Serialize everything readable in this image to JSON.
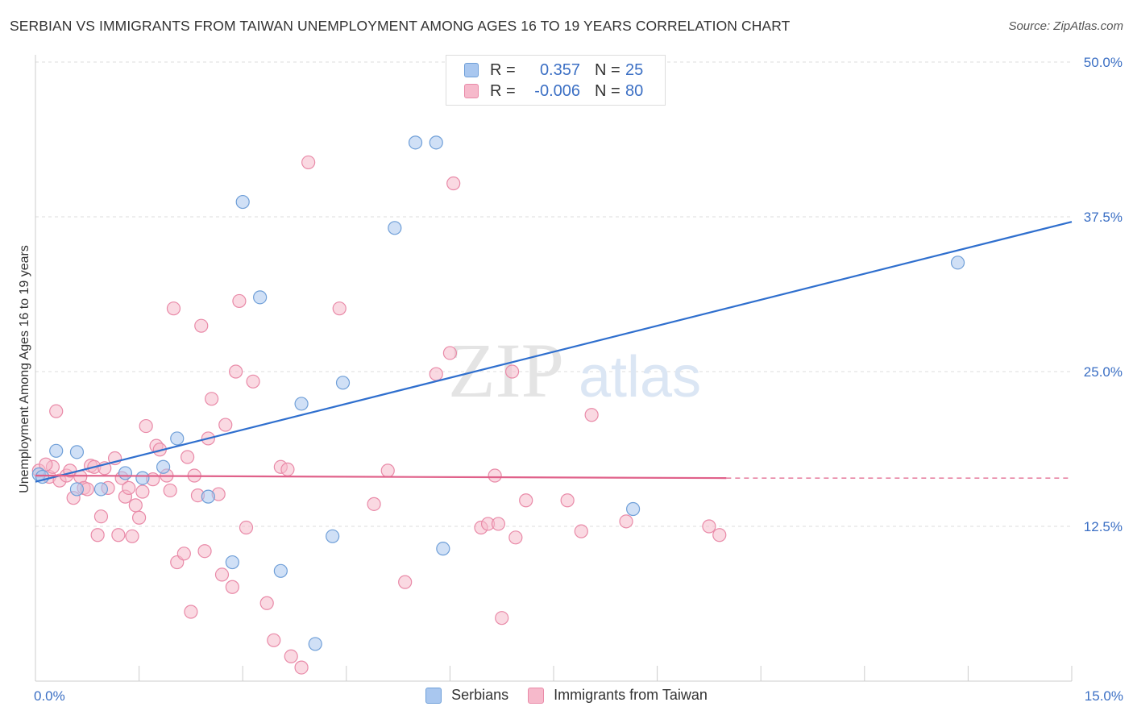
{
  "header": {
    "title": "SERBIAN VS IMMIGRANTS FROM TAIWAN UNEMPLOYMENT AMONG AGES 16 TO 19 YEARS CORRELATION CHART",
    "source": "Source: ZipAtlas.com"
  },
  "legend_top": {
    "rows": [
      {
        "r_label": "R =",
        "r_value": "0.357",
        "n_label": "N =",
        "n_value": "25"
      },
      {
        "r_label": "R =",
        "r_value": "-0.006",
        "n_label": "N =",
        "n_value": "80"
      }
    ]
  },
  "legend_bottom": {
    "serbians": "Serbians",
    "taiwan": "Immigrants from Taiwan"
  },
  "watermark": {
    "zip": "ZIP",
    "atlas": "atlas"
  },
  "colors": {
    "serbians_fill": "#a9c7ef",
    "serbians_stroke": "#6f9fd8",
    "serbians_line": "#2f6fce",
    "taiwan_fill": "#f6b9cb",
    "taiwan_stroke": "#e98aa8",
    "taiwan_line": "#e0618a",
    "tick_label": "#3b6fc4",
    "grid": "#dddddd"
  },
  "chart_data": {
    "type": "scatter",
    "title": "SERBIAN VS IMMIGRANTS FROM TAIWAN UNEMPLOYMENT AMONG AGES 16 TO 19 YEARS CORRELATION CHART",
    "xlabel": "",
    "ylabel": "Unemployment Among Ages 16 to 19 years",
    "xlim": [
      0,
      15
    ],
    "ylim": [
      0,
      50
    ],
    "x_tick_labels": [
      "0.0%",
      "15.0%"
    ],
    "y_ticks": [
      12.5,
      25.0,
      37.5,
      50.0
    ],
    "y_tick_labels": [
      "12.5%",
      "25.0%",
      "37.5%",
      "50.0%"
    ],
    "grid": true,
    "legend_placement": "top-center",
    "series": [
      {
        "name": "Serbians",
        "r": 0.357,
        "n": 25,
        "trend": {
          "x": [
            0,
            15
          ],
          "y": [
            16.1,
            37.1
          ]
        },
        "points": [
          [
            0.05,
            16.7
          ],
          [
            0.1,
            16.5
          ],
          [
            0.3,
            18.6
          ],
          [
            0.6,
            18.5
          ],
          [
            0.6,
            15.5
          ],
          [
            0.95,
            15.5
          ],
          [
            1.3,
            16.8
          ],
          [
            1.55,
            16.4
          ],
          [
            1.85,
            17.3
          ],
          [
            2.05,
            19.6
          ],
          [
            2.5,
            14.9
          ],
          [
            2.85,
            9.6
          ],
          [
            3.0,
            38.7
          ],
          [
            3.25,
            31.0
          ],
          [
            3.55,
            8.9
          ],
          [
            3.85,
            22.4
          ],
          [
            4.05,
            3.0
          ],
          [
            4.3,
            11.7
          ],
          [
            4.45,
            24.1
          ],
          [
            5.2,
            36.6
          ],
          [
            5.5,
            43.5
          ],
          [
            5.8,
            43.5
          ],
          [
            5.9,
            10.7
          ],
          [
            8.65,
            13.9
          ],
          [
            13.35,
            33.8
          ]
        ]
      },
      {
        "name": "Immigrants from Taiwan",
        "r": -0.006,
        "n": 80,
        "trend": {
          "x": [
            0,
            10
          ],
          "y": [
            16.6,
            16.4
          ]
        },
        "trend_dashed": {
          "x": [
            10,
            15
          ],
          "y": [
            16.4,
            16.4
          ]
        },
        "points": [
          [
            0.05,
            17.0
          ],
          [
            0.2,
            16.5
          ],
          [
            0.25,
            17.3
          ],
          [
            0.3,
            21.8
          ],
          [
            0.35,
            16.2
          ],
          [
            0.45,
            16.6
          ],
          [
            0.5,
            17.0
          ],
          [
            0.55,
            14.8
          ],
          [
            0.65,
            16.5
          ],
          [
            0.7,
            15.6
          ],
          [
            0.75,
            15.5
          ],
          [
            0.8,
            17.4
          ],
          [
            0.85,
            17.3
          ],
          [
            0.9,
            11.8
          ],
          [
            0.95,
            13.3
          ],
          [
            1.05,
            15.6
          ],
          [
            1.15,
            18.0
          ],
          [
            1.2,
            11.8
          ],
          [
            1.25,
            16.4
          ],
          [
            1.3,
            14.9
          ],
          [
            1.35,
            15.6
          ],
          [
            1.4,
            11.7
          ],
          [
            1.45,
            14.2
          ],
          [
            1.5,
            13.2
          ],
          [
            1.55,
            15.3
          ],
          [
            1.6,
            20.6
          ],
          [
            1.7,
            16.3
          ],
          [
            1.75,
            19.0
          ],
          [
            1.8,
            18.7
          ],
          [
            1.9,
            16.6
          ],
          [
            1.95,
            15.4
          ],
          [
            2.0,
            30.1
          ],
          [
            2.05,
            9.6
          ],
          [
            2.15,
            10.3
          ],
          [
            2.2,
            18.1
          ],
          [
            2.25,
            5.6
          ],
          [
            2.3,
            16.6
          ],
          [
            2.35,
            15.0
          ],
          [
            2.4,
            28.7
          ],
          [
            2.45,
            10.5
          ],
          [
            2.5,
            19.6
          ],
          [
            2.55,
            22.8
          ],
          [
            2.65,
            15.1
          ],
          [
            2.7,
            8.6
          ],
          [
            2.75,
            20.7
          ],
          [
            2.85,
            7.6
          ],
          [
            2.9,
            25.0
          ],
          [
            2.95,
            30.7
          ],
          [
            3.05,
            12.4
          ],
          [
            3.15,
            24.2
          ],
          [
            3.35,
            6.3
          ],
          [
            3.45,
            3.3
          ],
          [
            3.55,
            17.3
          ],
          [
            3.65,
            17.1
          ],
          [
            3.7,
            2.0
          ],
          [
            3.85,
            1.1
          ],
          [
            3.95,
            41.9
          ],
          [
            4.4,
            30.1
          ],
          [
            4.9,
            14.3
          ],
          [
            5.1,
            17.0
          ],
          [
            5.35,
            8.0
          ],
          [
            5.8,
            24.8
          ],
          [
            6.0,
            26.5
          ],
          [
            6.05,
            40.2
          ],
          [
            6.45,
            12.4
          ],
          [
            6.55,
            12.7
          ],
          [
            6.65,
            16.6
          ],
          [
            6.7,
            12.7
          ],
          [
            6.75,
            5.1
          ],
          [
            6.9,
            25.0
          ],
          [
            6.95,
            11.6
          ],
          [
            7.1,
            14.6
          ],
          [
            7.7,
            14.6
          ],
          [
            7.9,
            12.1
          ],
          [
            8.05,
            21.5
          ],
          [
            8.55,
            12.9
          ],
          [
            9.75,
            12.5
          ],
          [
            9.9,
            11.8
          ],
          [
            0.15,
            17.5
          ],
          [
            1.0,
            17.2
          ]
        ]
      }
    ]
  }
}
